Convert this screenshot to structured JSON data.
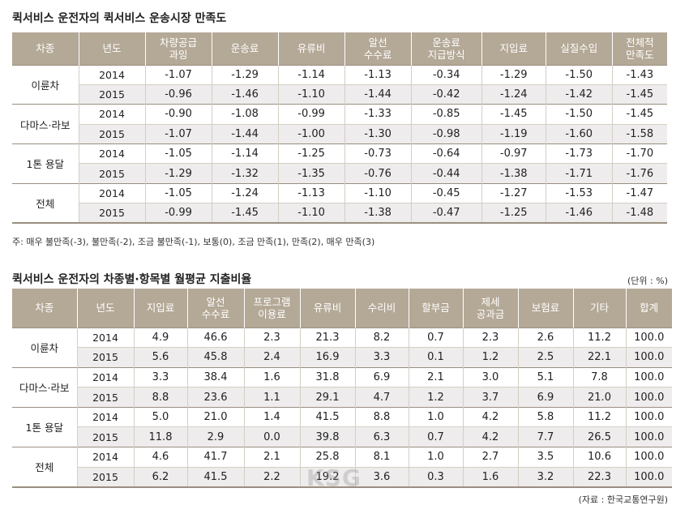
{
  "table1": {
    "title": "퀵서비스 운전자의 퀵서비스 운송시장 만족도",
    "headers": [
      "차종",
      "년도",
      "차량공급\n과잉",
      "운송료",
      "유류비",
      "알선\n수수료",
      "운송료\n지급방식",
      "지입료",
      "실질수입",
      "전체적\n만족도"
    ],
    "groups": [
      {
        "type": "이륜차",
        "rows": [
          {
            "year": "2014",
            "values": [
              "-1.07",
              "-1.29",
              "-1.14",
              "-1.13",
              "-0.34",
              "-1.29",
              "-1.50",
              "-1.43"
            ]
          },
          {
            "year": "2015",
            "values": [
              "-0.96",
              "-1.46",
              "-1.10",
              "-1.44",
              "-0.42",
              "-1.24",
              "-1.42",
              "-1.45"
            ]
          }
        ]
      },
      {
        "type": "다마스·라보",
        "rows": [
          {
            "year": "2014",
            "values": [
              "-0.90",
              "-1.08",
              "-0.99",
              "-1.33",
              "-0.85",
              "-1.45",
              "-1.50",
              "-1.45"
            ]
          },
          {
            "year": "2015",
            "values": [
              "-1.07",
              "-1.44",
              "-1.00",
              "-1.30",
              "-0.98",
              "-1.19",
              "-1.60",
              "-1.58"
            ]
          }
        ]
      },
      {
        "type": "1톤 용달",
        "rows": [
          {
            "year": "2014",
            "values": [
              "-1.05",
              "-1.14",
              "-1.25",
              "-0.73",
              "-0.64",
              "-0.97",
              "-1.73",
              "-1.70"
            ]
          },
          {
            "year": "2015",
            "values": [
              "-1.29",
              "-1.32",
              "-1.35",
              "-0.76",
              "-0.44",
              "-1.38",
              "-1.71",
              "-1.76"
            ]
          }
        ]
      },
      {
        "type": "전체",
        "rows": [
          {
            "year": "2014",
            "values": [
              "-1.05",
              "-1.24",
              "-1.13",
              "-1.10",
              "-0.45",
              "-1.27",
              "-1.53",
              "-1.47"
            ]
          },
          {
            "year": "2015",
            "values": [
              "-0.99",
              "-1.45",
              "-1.10",
              "-1.38",
              "-0.47",
              "-1.25",
              "-1.46",
              "-1.48"
            ]
          }
        ]
      }
    ],
    "note": "주: 매우 불만족(-3), 불만족(-2), 조금 불만족(-1), 보통(0), 조금 만족(1), 만족(2), 매우 만족(3)"
  },
  "table2": {
    "title": "퀵서비스 운전자의 차종별·항목별 월평균 지출비율",
    "unit": "(단위 : %)",
    "headers": [
      "차종",
      "년도",
      "지입료",
      "알선\n수수료",
      "프로그램\n이용료",
      "유류비",
      "수리비",
      "할부금",
      "제세\n공과금",
      "보험료",
      "기타",
      "합계"
    ],
    "groups": [
      {
        "type": "이륜차",
        "rows": [
          {
            "year": "2014",
            "values": [
              "4.9",
              "46.6",
              "2.3",
              "21.3",
              "8.2",
              "0.7",
              "2.3",
              "2.6",
              "11.2",
              "100.0"
            ]
          },
          {
            "year": "2015",
            "values": [
              "5.6",
              "45.8",
              "2.4",
              "16.9",
              "3.3",
              "0.1",
              "1.2",
              "2.5",
              "22.1",
              "100.0"
            ]
          }
        ]
      },
      {
        "type": "다마스·라보",
        "rows": [
          {
            "year": "2014",
            "values": [
              "3.3",
              "38.4",
              "1.6",
              "31.8",
              "6.9",
              "2.1",
              "3.0",
              "5.1",
              "7.8",
              "100.0"
            ]
          },
          {
            "year": "2015",
            "values": [
              "8.8",
              "23.6",
              "1.1",
              "29.1",
              "4.7",
              "1.2",
              "3.7",
              "6.9",
              "21.0",
              "100.0"
            ]
          }
        ]
      },
      {
        "type": "1톤 용달",
        "rows": [
          {
            "year": "2014",
            "values": [
              "5.0",
              "21.0",
              "1.4",
              "41.5",
              "8.8",
              "1.0",
              "4.2",
              "5.8",
              "11.2",
              "100.0"
            ]
          },
          {
            "year": "2015",
            "values": [
              "11.8",
              "2.9",
              "0.0",
              "39.8",
              "6.3",
              "0.7",
              "4.2",
              "7.7",
              "26.5",
              "100.0"
            ]
          }
        ]
      },
      {
        "type": "전체",
        "rows": [
          {
            "year": "2014",
            "values": [
              "4.6",
              "41.7",
              "2.1",
              "25.8",
              "8.1",
              "1.0",
              "2.7",
              "3.5",
              "10.6",
              "100.0"
            ]
          },
          {
            "year": "2015",
            "values": [
              "6.2",
              "41.5",
              "2.2",
              "19.2",
              "3.6",
              "0.3",
              "1.6",
              "3.2",
              "22.3",
              "100.0"
            ]
          }
        ]
      }
    ],
    "source": "(자료 : 한국교통연구원)"
  },
  "watermark": "KSG",
  "colors": {
    "header_bg": "#b4a896",
    "stripe": "#eeecec",
    "rule": "#9a8f80"
  }
}
